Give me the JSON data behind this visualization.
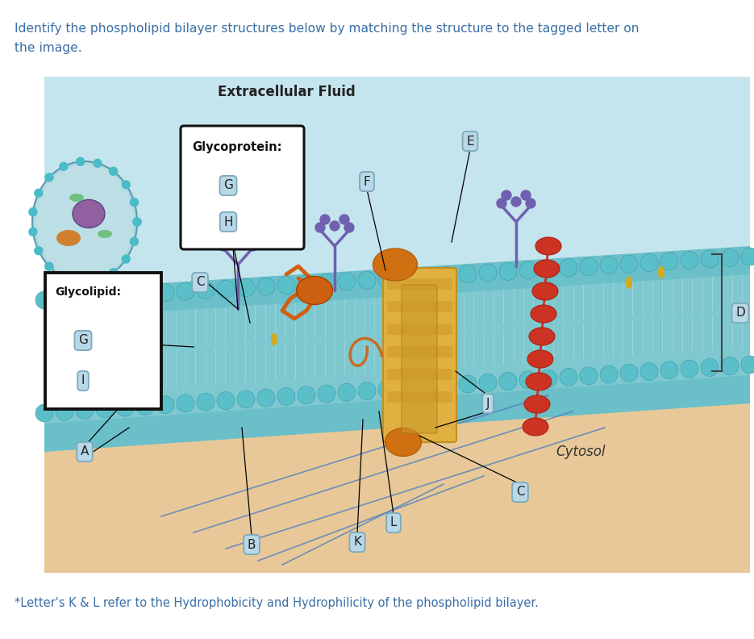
{
  "bg_color": "#ffffff",
  "top_text_line1": "Identify the phospholipid bilayer structures below by matching the structure to the tagged letter on",
  "top_text_line2": "the image.",
  "top_text_color": "#3a6ea5",
  "bottom_text": "*Letter's K & L refer to the Hydrophobicity and Hydrophilicity of the phospholipid bilayer.",
  "bottom_text_color": "#3a6ea5",
  "title_label": "Extracellular Fluid",
  "cytosol_label": "Cytosol",
  "glycoprotein_label": "Glycoprotein:",
  "glycolipid_label": "Glycolipid:",
  "fig_width": 9.35,
  "fig_height": 7.92,
  "dpi": 100,
  "membrane_teal": "#5bbfcc",
  "membrane_dark_teal": "#4aaabb",
  "extracellular_bg": "#c8e8f0",
  "cytosol_bg": "#f0cfa0",
  "label_box_fill": "#b8d8e8",
  "label_box_edge": "#7aaabb",
  "black_box_edge": "#111111",
  "white_fill": "#ffffff",
  "orange_protein": "#d4700a",
  "yellow_protein": "#e8b830",
  "red_protein": "#cc2200",
  "purple_chain": "#6050a0",
  "blue_line": "#5080c0"
}
